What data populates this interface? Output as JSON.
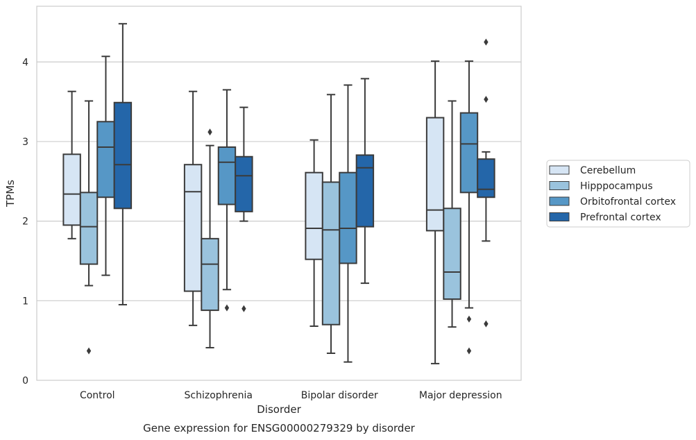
{
  "caption": "Gene expression for ENSG00000279329 by disorder",
  "chart_data": {
    "type": "boxplot",
    "title": "",
    "xlabel": "Disorder",
    "ylabel": "TPMs",
    "ylim": [
      0,
      4.7
    ],
    "yticks": [
      0,
      1,
      2,
      3,
      4
    ],
    "grid": "horizontal",
    "legend_position": "right",
    "categories": [
      "Control",
      "Schizophrenia",
      "Bipolar disorder",
      "Major depression"
    ],
    "series": [
      {
        "name": "Cerebellum",
        "color": "#d6e5f4",
        "boxes": [
          {
            "whislo": 1.78,
            "q1": 1.95,
            "med": 2.34,
            "q3": 2.84,
            "whishi": 3.63,
            "fliers": []
          },
          {
            "whislo": 0.69,
            "q1": 1.12,
            "med": 2.37,
            "q3": 2.71,
            "whishi": 3.63,
            "fliers": []
          },
          {
            "whislo": 0.68,
            "q1": 1.52,
            "med": 1.91,
            "q3": 2.61,
            "whishi": 3.02,
            "fliers": []
          },
          {
            "whislo": 0.21,
            "q1": 1.88,
            "med": 2.14,
            "q3": 3.3,
            "whishi": 4.01,
            "fliers": []
          }
        ]
      },
      {
        "name": "Hipppocampus",
        "color": "#9ac3dd",
        "boxes": [
          {
            "whislo": 1.19,
            "q1": 1.46,
            "med": 1.93,
            "q3": 2.36,
            "whishi": 3.51,
            "fliers": [
              0.37
            ]
          },
          {
            "whislo": 0.41,
            "q1": 0.88,
            "med": 1.46,
            "q3": 1.78,
            "whishi": 2.95,
            "fliers": [
              3.12
            ]
          },
          {
            "whislo": 0.34,
            "q1": 0.7,
            "med": 1.89,
            "q3": 2.49,
            "whishi": 3.59,
            "fliers": []
          },
          {
            "whislo": 0.67,
            "q1": 1.02,
            "med": 1.36,
            "q3": 2.16,
            "whishi": 3.51,
            "fliers": []
          }
        ]
      },
      {
        "name": "Orbitofrontal cortex",
        "color": "#5697c6",
        "boxes": [
          {
            "whislo": 1.32,
            "q1": 2.3,
            "med": 2.93,
            "q3": 3.25,
            "whishi": 4.07,
            "fliers": []
          },
          {
            "whislo": 1.14,
            "q1": 2.21,
            "med": 2.74,
            "q3": 2.93,
            "whishi": 3.65,
            "fliers": [
              0.91
            ]
          },
          {
            "whislo": 0.23,
            "q1": 1.47,
            "med": 1.91,
            "q3": 2.61,
            "whishi": 3.71,
            "fliers": []
          },
          {
            "whislo": 0.91,
            "q1": 2.36,
            "med": 2.97,
            "q3": 3.36,
            "whishi": 4.01,
            "fliers": [
              0.77,
              0.37
            ]
          }
        ]
      },
      {
        "name": "Prefrontal cortex",
        "color": "#2466a9",
        "boxes": [
          {
            "whislo": 0.95,
            "q1": 2.16,
            "med": 2.71,
            "q3": 3.49,
            "whishi": 4.48,
            "fliers": []
          },
          {
            "whislo": 2.0,
            "q1": 2.12,
            "med": 2.57,
            "q3": 2.81,
            "whishi": 3.43,
            "fliers": [
              0.9
            ]
          },
          {
            "whislo": 1.22,
            "q1": 1.93,
            "med": 2.67,
            "q3": 2.83,
            "whishi": 3.79,
            "fliers": []
          },
          {
            "whislo": 1.75,
            "q1": 2.3,
            "med": 2.4,
            "q3": 2.78,
            "whishi": 2.87,
            "fliers": [
              4.25,
              3.53,
              0.71
            ]
          }
        ]
      }
    ]
  }
}
